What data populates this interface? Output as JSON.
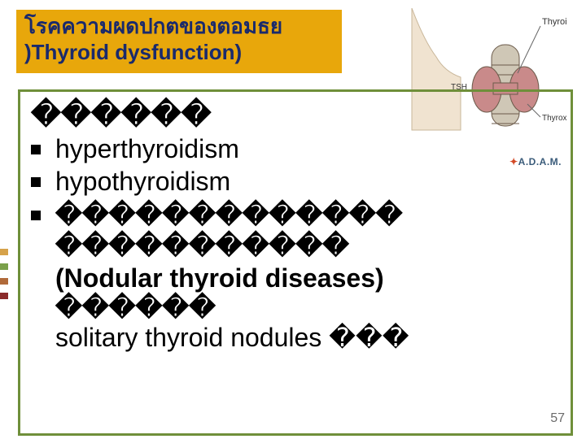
{
  "title": {
    "thai": "โรคความผดปกตของตอมธย",
    "eng_prefix": "",
    "eng": ")Thyroid dysfunction)",
    "bg_color": "#e8a70b",
    "thai_color": "#1a2a6c",
    "eng_color": "#1a2a6c"
  },
  "content": {
    "border_color": "#6f8f3a",
    "header": "������",
    "bullets": [
      {
        "text": " hyperthyroidism",
        "bold": false
      },
      {
        "text": "hypothyroidism",
        "bold": false
      },
      {
        "text": "������������� �����������",
        "bold": true
      }
    ],
    "sub_lines": [
      {
        "text": "(Nodular thyroid diseases)",
        "bold": true
      },
      {
        "text": "������",
        "bold": true
      },
      {
        "text": "solitary thyroid nodules ���",
        "bold": false
      }
    ]
  },
  "image": {
    "label_thyroid": "Thyroid",
    "label_tsh": "TSH",
    "label_thyroxine": "Thyroxine",
    "gland_color": "#c98a8a",
    "trachea_color": "#cfc7b6",
    "outline_color": "#6b5a4a",
    "bg_color": "#ffffff"
  },
  "branding": {
    "adam": "A.D.A.M."
  },
  "edge_colors": [
    "#d6a24a",
    "#7aa04a",
    "#b06a3a",
    "#8a2a2a"
  ],
  "page_number": "57",
  "slide_bg": "#ffffff"
}
